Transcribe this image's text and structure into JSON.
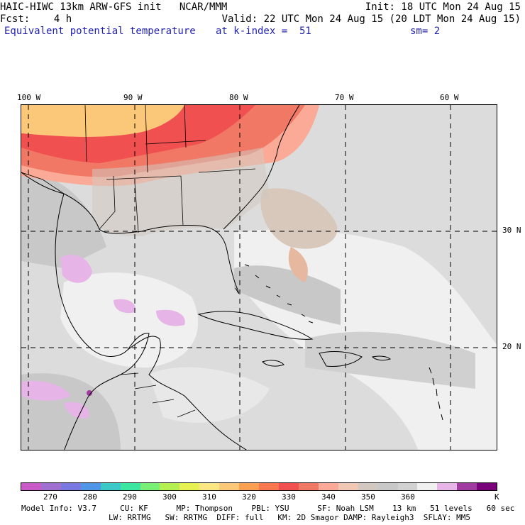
{
  "header": {
    "line1_left": "HAIC-HIWC 13km ARW-GFS init   NCAR/MMM",
    "line1_right": "Init: 18 UTC Mon 24 Aug 15",
    "line2_left": "Fcst:    4 h",
    "line2_right": "Valid: 22 UTC Mon 24 Aug 15 (20 LDT Mon 24 Aug 15)",
    "field": "Equivalent potential temperature",
    "level": "at k-index =  51",
    "smooth": "sm= 2"
  },
  "axes": {
    "lon_labels": [
      "100 W",
      "90 W",
      "80 W",
      "70 W",
      "60 W"
    ],
    "lat_labels": [
      "30 N",
      "20 N"
    ]
  },
  "colorbar": {
    "colors": [
      "#c85ac8",
      "#a070d0",
      "#7878e0",
      "#5096e6",
      "#3cc8c8",
      "#3ce6a0",
      "#78f078",
      "#b4f050",
      "#e6f050",
      "#fae682",
      "#fac878",
      "#faa050",
      "#fa7850",
      "#f05050",
      "#f07864",
      "#faaa96",
      "#f0c8b4",
      "#d2c8c0",
      "#c8c8c8",
      "#d2d2d2",
      "#f0f0f0",
      "#e6b4e6",
      "#a03ca0",
      "#780078"
    ],
    "labels": [
      "270",
      "280",
      "290",
      "300",
      "310",
      "320",
      "330",
      "340",
      "350",
      "360"
    ],
    "unit": "K"
  },
  "footer": {
    "line1": "Model Info: V3.7     CU: KF      MP: Thompson    PBL: YSU      SF: Noah LSM    13 km   51 levels   60 sec",
    "line2": "LW: RRTMG   SW: RRTMG  DIFF: full   KM: 2D Smagor DAMP: Rayleigh3  SFLAY: MM5"
  }
}
